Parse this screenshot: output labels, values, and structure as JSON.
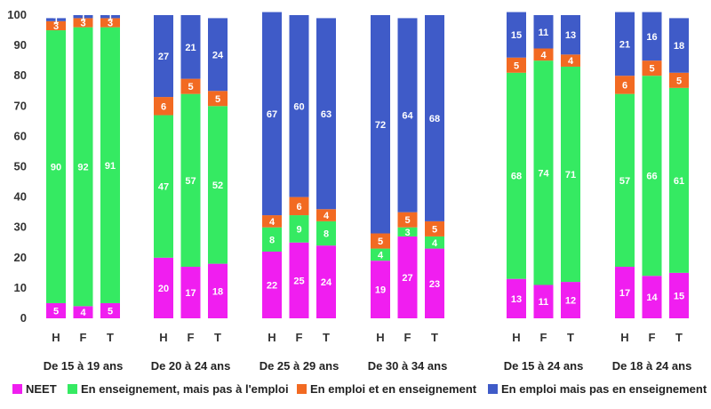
{
  "chart_data": {
    "type": "bar",
    "stacked": true,
    "ylim": [
      0,
      100
    ],
    "yticks": [
      0,
      10,
      20,
      30,
      40,
      50,
      60,
      70,
      80,
      90,
      100
    ],
    "legend_position": "bottom",
    "groups": [
      {
        "label": "De 15 à 19 ans",
        "bars": [
          {
            "label": "H",
            "values": [
              5,
              90,
              3,
              1
            ]
          },
          {
            "label": "F",
            "values": [
              4,
              92,
              3,
              1
            ]
          },
          {
            "label": "T",
            "values": [
              5,
              91,
              3,
              1
            ]
          }
        ]
      },
      {
        "label": "De 20 à 24 ans",
        "bars": [
          {
            "label": "H",
            "values": [
              20,
              47,
              6,
              27
            ]
          },
          {
            "label": "F",
            "values": [
              17,
              57,
              5,
              21
            ]
          },
          {
            "label": "T",
            "values": [
              18,
              52,
              5,
              24
            ]
          }
        ]
      },
      {
        "label": "De 25 à 29 ans",
        "bars": [
          {
            "label": "H",
            "values": [
              22,
              8,
              4,
              67
            ]
          },
          {
            "label": "F",
            "values": [
              25,
              9,
              6,
              60
            ]
          },
          {
            "label": "T",
            "values": [
              24,
              8,
              4,
              63
            ]
          }
        ]
      },
      {
        "label": "De 30 à 34 ans",
        "bars": [
          {
            "label": "H",
            "values": [
              19,
              4,
              5,
              72
            ]
          },
          {
            "label": "F",
            "values": [
              27,
              3,
              5,
              64
            ]
          },
          {
            "label": "T",
            "values": [
              23,
              4,
              5,
              68
            ]
          }
        ]
      },
      {
        "label": "De 15 à 24 ans",
        "bars": [
          {
            "label": "H",
            "values": [
              13,
              68,
              5,
              15
            ]
          },
          {
            "label": "F",
            "values": [
              11,
              74,
              4,
              11
            ]
          },
          {
            "label": "T",
            "values": [
              12,
              71,
              4,
              13
            ]
          }
        ]
      },
      {
        "label": "De 18 à 24 ans",
        "bars": [
          {
            "label": "H",
            "values": [
              17,
              57,
              6,
              21
            ]
          },
          {
            "label": "F",
            "values": [
              14,
              66,
              5,
              16
            ]
          },
          {
            "label": "T",
            "values": [
              15,
              61,
              5,
              18
            ]
          }
        ]
      }
    ],
    "series": [
      {
        "name": "NEET",
        "color": "#f01ef0"
      },
      {
        "name": "En enseignement, mais pas à l'emploi",
        "color": "#35ea62"
      },
      {
        "name": "En emploi et en enseignement",
        "color": "#f26a22"
      },
      {
        "name": "En emploi mais pas en enseignement",
        "color": "#3f5bc8"
      }
    ]
  }
}
